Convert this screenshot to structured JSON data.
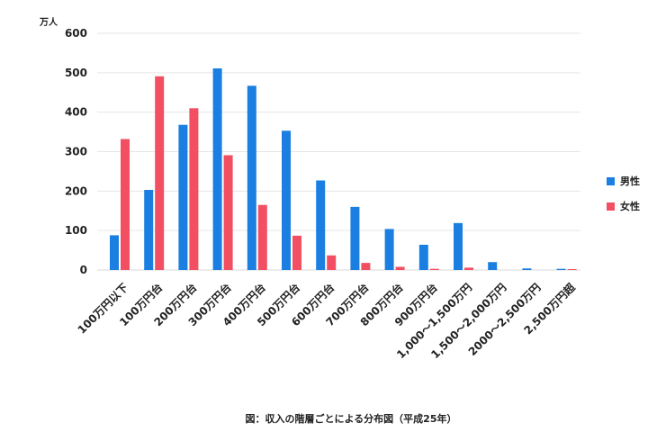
{
  "chart_data": {
    "type": "bar",
    "caption": "図：収入の階層ごとによる分布図（平成25年）",
    "y_unit_label": "万人",
    "ylim": [
      0,
      600
    ],
    "y_ticks": [
      0,
      100,
      200,
      300,
      400,
      500,
      600
    ],
    "grid": true,
    "legend_position": "right",
    "categories": [
      "100万円以下",
      "100万円台",
      "200万円台",
      "300万円台",
      "400万円台",
      "500万円台",
      "600万円台",
      "700万円台",
      "800万円台",
      "900万円台",
      "1,000～1,500万円",
      "1,500～2,000万円",
      "2000～2,500万円",
      "2,500万円超"
    ],
    "series": [
      {
        "name": "男性",
        "color": "#1a7fe0",
        "values": [
          88,
          203,
          368,
          511,
          467,
          353,
          227,
          160,
          104,
          64,
          119,
          20,
          4,
          3
        ]
      },
      {
        "name": "女性",
        "color": "#f24f63",
        "values": [
          332,
          491,
          410,
          291,
          165,
          87,
          37,
          18,
          8,
          3,
          6,
          0,
          0,
          2
        ]
      }
    ]
  }
}
